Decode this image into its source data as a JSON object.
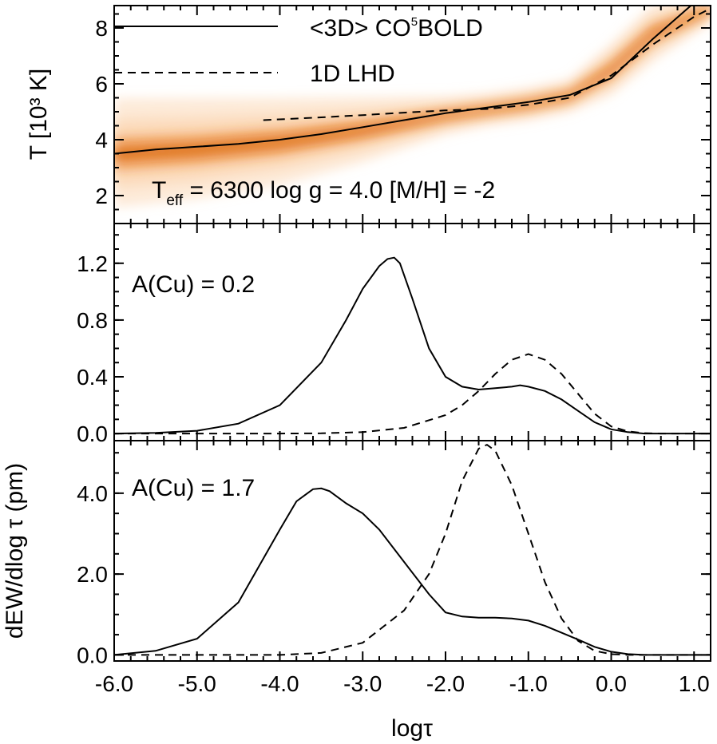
{
  "colors": {
    "density_deep": "#b84300",
    "density_mid": "#e8791e",
    "density_light": "#fbd9b8",
    "line": "#000000"
  },
  "chart_data": [
    {
      "type": "area",
      "panel": "temperature",
      "ylabel": "T [10³ K]",
      "xlim": [
        -6.0,
        1.2
      ],
      "ylim": [
        1.0,
        8.8
      ],
      "yticks": [
        2,
        4,
        6,
        8
      ],
      "annotation": {
        "main": "T",
        "sub": "eff",
        "rest": " = 6300 log g = 4.0 [M/H] = -2"
      },
      "legend": {
        "placement": "top",
        "entries": [
          {
            "label_pre": "<3D> CO",
            "label_sup": "5",
            "label_post": "BOLD",
            "style": "solid"
          },
          {
            "label_pre": "1D LHD",
            "label_sup": "",
            "label_post": "",
            "style": "dashed"
          }
        ]
      },
      "density_band": {
        "x": [
          -6.0,
          -5.0,
          -4.0,
          -3.0,
          -2.0,
          -1.5,
          -1.0,
          -0.5,
          0.0,
          0.5,
          1.2
        ],
        "low": [
          1.6,
          1.9,
          2.4,
          3.2,
          4.2,
          4.5,
          4.7,
          5.0,
          5.6,
          6.8,
          8.2
        ],
        "high": [
          5.6,
          5.6,
          5.6,
          5.6,
          5.6,
          5.7,
          5.9,
          6.2,
          7.5,
          8.9,
          9.2
        ]
      },
      "series": [
        {
          "style": "solid",
          "x": [
            -6.0,
            -5.5,
            -5.0,
            -4.5,
            -4.0,
            -3.5,
            -3.0,
            -2.5,
            -2.0,
            -1.5,
            -1.0,
            -0.5,
            0.0,
            0.5,
            1.0,
            1.2
          ],
          "y": [
            3.5,
            3.65,
            3.75,
            3.85,
            4.0,
            4.2,
            4.45,
            4.7,
            4.95,
            5.15,
            5.35,
            5.6,
            6.2,
            7.6,
            8.9,
            9.3
          ]
        },
        {
          "style": "dashed",
          "x": [
            -4.2,
            -3.5,
            -3.0,
            -2.5,
            -2.0,
            -1.5,
            -1.0,
            -0.5,
            0.0,
            0.5,
            1.0,
            1.2
          ],
          "y": [
            4.7,
            4.8,
            4.88,
            4.97,
            5.05,
            5.1,
            5.25,
            5.5,
            6.3,
            7.4,
            8.4,
            8.7
          ]
        }
      ]
    },
    {
      "type": "line",
      "panel": "contribution-low",
      "xlim": [
        -6.0,
        1.2
      ],
      "ylim": [
        -0.05,
        1.48
      ],
      "yticks": [
        "0.0",
        "0.4",
        "0.8",
        "1.2"
      ],
      "annotation": "A(Cu) = 0.2",
      "series": [
        {
          "style": "solid",
          "x": [
            -6.0,
            -5.5,
            -5.0,
            -4.5,
            -4.0,
            -3.5,
            -3.2,
            -3.0,
            -2.8,
            -2.7,
            -2.62,
            -2.55,
            -2.4,
            -2.2,
            -2.0,
            -1.8,
            -1.6,
            -1.4,
            -1.2,
            -1.1,
            -1.0,
            -0.8,
            -0.6,
            -0.4,
            -0.2,
            0.0,
            0.2,
            0.4,
            0.6,
            0.8,
            1.0,
            1.2
          ],
          "y": [
            0.0,
            0.005,
            0.02,
            0.07,
            0.2,
            0.5,
            0.8,
            1.02,
            1.18,
            1.23,
            1.24,
            1.2,
            0.95,
            0.6,
            0.4,
            0.33,
            0.31,
            0.32,
            0.33,
            0.34,
            0.33,
            0.3,
            0.24,
            0.16,
            0.08,
            0.03,
            0.01,
            0.0,
            0.0,
            0.0,
            0.0,
            0.0
          ]
        },
        {
          "style": "dashed",
          "x": [
            -6.0,
            -5.0,
            -4.0,
            -3.5,
            -3.0,
            -2.5,
            -2.0,
            -1.8,
            -1.6,
            -1.4,
            -1.2,
            -1.0,
            -0.8,
            -0.6,
            -0.4,
            -0.2,
            0.0,
            0.2,
            0.4,
            0.6,
            0.8,
            1.0,
            1.2
          ],
          "y": [
            0.0,
            0.0,
            0.0,
            0.002,
            0.01,
            0.04,
            0.13,
            0.2,
            0.3,
            0.42,
            0.52,
            0.56,
            0.52,
            0.42,
            0.28,
            0.14,
            0.05,
            0.015,
            0.003,
            0.0,
            0.0,
            0.0,
            0.0
          ]
        }
      ]
    },
    {
      "type": "line",
      "panel": "contribution-high",
      "ylabel": "dEW/dlog τ (pm)",
      "xlabel": "logτ",
      "xlim": [
        -6.0,
        1.2
      ],
      "ylim": [
        -0.15,
        5.3
      ],
      "xticks": [
        "-6.0",
        "-5.0",
        "-4.0",
        "-3.0",
        "-2.0",
        "-1.0",
        "0.0",
        "1.0"
      ],
      "yticks": [
        "0.0",
        "2.0",
        "4.0"
      ],
      "annotation": "A(Cu) = 1.7",
      "series": [
        {
          "style": "solid",
          "x": [
            -6.0,
            -5.5,
            -5.0,
            -4.5,
            -4.0,
            -3.8,
            -3.6,
            -3.5,
            -3.4,
            -3.2,
            -3.0,
            -2.8,
            -2.5,
            -2.2,
            -2.0,
            -1.8,
            -1.6,
            -1.4,
            -1.2,
            -1.0,
            -0.8,
            -0.6,
            -0.4,
            -0.2,
            0.0,
            0.2,
            0.4,
            0.6,
            0.8,
            1.0,
            1.2
          ],
          "y": [
            0.0,
            0.1,
            0.4,
            1.3,
            3.1,
            3.8,
            4.1,
            4.12,
            4.05,
            3.75,
            3.5,
            3.1,
            2.3,
            1.5,
            1.05,
            0.95,
            0.92,
            0.92,
            0.9,
            0.85,
            0.72,
            0.55,
            0.38,
            0.2,
            0.08,
            0.02,
            0.0,
            0.0,
            0.0,
            0.0,
            0.0
          ]
        },
        {
          "style": "dashed",
          "x": [
            -6.0,
            -5.0,
            -4.0,
            -3.5,
            -3.0,
            -2.5,
            -2.2,
            -2.0,
            -1.8,
            -1.6,
            -1.5,
            -1.4,
            -1.2,
            -1.0,
            -0.8,
            -0.6,
            -0.4,
            -0.2,
            0.0,
            0.2,
            0.4,
            0.6,
            0.8,
            1.0,
            1.2
          ],
          "y": [
            0.0,
            0.0,
            0.0,
            0.05,
            0.3,
            1.1,
            2.0,
            3.0,
            4.3,
            5.1,
            5.2,
            5.05,
            4.2,
            3.0,
            1.8,
            0.9,
            0.35,
            0.1,
            0.02,
            0.0,
            0.0,
            0.0,
            0.0,
            0.0,
            0.0
          ]
        }
      ]
    }
  ]
}
